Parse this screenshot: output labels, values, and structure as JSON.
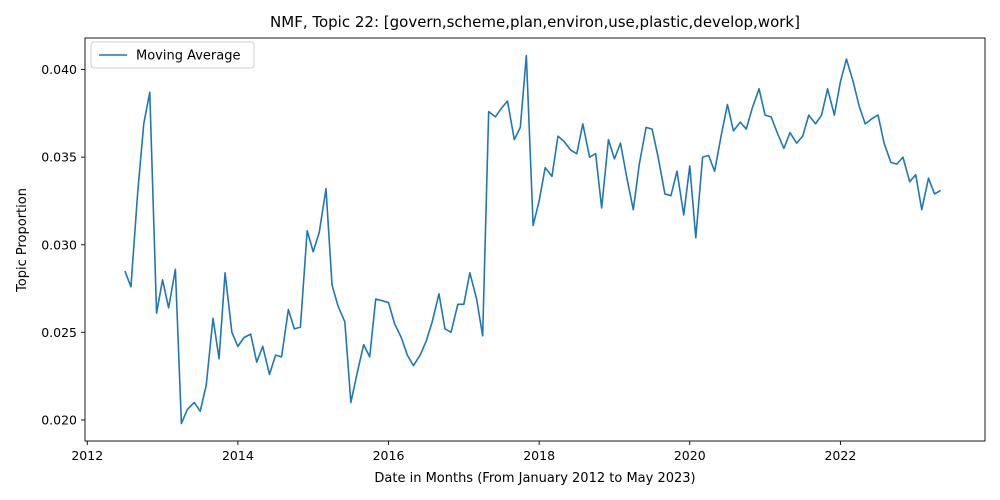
{
  "chart_data": {
    "type": "line",
    "title": "NMF, Topic 22: [govern,scheme,plan,environ,use,plastic,develop,work]",
    "xlabel": "Date in Months (From January 2012 to May 2023)",
    "ylabel": "Topic Proportion",
    "xlim": [
      2011.97,
      2023.92
    ],
    "ylim": [
      0.0188,
      0.0418
    ],
    "xticks": [
      2012,
      2014,
      2016,
      2018,
      2020,
      2022
    ],
    "yticks": [
      0.02,
      0.025,
      0.03,
      0.035,
      0.04
    ],
    "ytick_labels": [
      "0.020",
      "0.025",
      "0.030",
      "0.035",
      "0.040"
    ],
    "legend_position": "upper-left",
    "grid": false,
    "line_color": "#1f77b4",
    "series": [
      {
        "name": "Moving Average",
        "x": [
          2012.5,
          2012.58,
          2012.67,
          2012.75,
          2012.83,
          2012.92,
          2013.0,
          2013.08,
          2013.17,
          2013.25,
          2013.33,
          2013.42,
          2013.5,
          2013.58,
          2013.67,
          2013.75,
          2013.83,
          2013.92,
          2014.0,
          2014.08,
          2014.17,
          2014.25,
          2014.33,
          2014.42,
          2014.5,
          2014.58,
          2014.67,
          2014.75,
          2014.83,
          2014.92,
          2015.0,
          2015.08,
          2015.17,
          2015.25,
          2015.33,
          2015.42,
          2015.5,
          2015.58,
          2015.67,
          2015.75,
          2015.83,
          2015.92,
          2016.0,
          2016.08,
          2016.17,
          2016.25,
          2016.33,
          2016.42,
          2016.5,
          2016.58,
          2016.67,
          2016.75,
          2016.83,
          2016.92,
          2017.0,
          2017.08,
          2017.17,
          2017.25,
          2017.33,
          2017.42,
          2017.5,
          2017.58,
          2017.67,
          2017.75,
          2017.83,
          2017.92,
          2018.0,
          2018.08,
          2018.17,
          2018.25,
          2018.33,
          2018.42,
          2018.5,
          2018.58,
          2018.67,
          2018.75,
          2018.83,
          2018.92,
          2019.0,
          2019.08,
          2019.17,
          2019.25,
          2019.33,
          2019.42,
          2019.5,
          2019.58,
          2019.67,
          2019.75,
          2019.83,
          2019.92,
          2020.0,
          2020.08,
          2020.17,
          2020.25,
          2020.33,
          2020.42,
          2020.5,
          2020.58,
          2020.67,
          2020.75,
          2020.83,
          2020.92,
          2021.0,
          2021.08,
          2021.17,
          2021.25,
          2021.33,
          2021.42,
          2021.5,
          2021.58,
          2021.67,
          2021.75,
          2021.83,
          2021.92,
          2022.0,
          2022.08,
          2022.17,
          2022.25,
          2022.33,
          2022.42,
          2022.5,
          2022.58,
          2022.67,
          2022.75,
          2022.83,
          2022.92,
          2023.0,
          2023.08,
          2023.17,
          2023.25,
          2023.33
        ],
        "y": [
          0.0285,
          0.0276,
          0.033,
          0.0369,
          0.0387,
          0.0261,
          0.028,
          0.0264,
          0.0286,
          0.0198,
          0.0206,
          0.021,
          0.0205,
          0.022,
          0.0258,
          0.0235,
          0.0284,
          0.025,
          0.0242,
          0.0247,
          0.0249,
          0.0233,
          0.0242,
          0.0226,
          0.0237,
          0.0236,
          0.0263,
          0.0252,
          0.0253,
          0.0308,
          0.0296,
          0.0307,
          0.0332,
          0.0277,
          0.0265,
          0.0256,
          0.021,
          0.0226,
          0.0243,
          0.0236,
          0.0269,
          0.0268,
          0.0267,
          0.0255,
          0.0247,
          0.0237,
          0.0231,
          0.0237,
          0.0245,
          0.0256,
          0.0272,
          0.0252,
          0.025,
          0.0266,
          0.0266,
          0.0284,
          0.0269,
          0.0248,
          0.0376,
          0.0373,
          0.0378,
          0.0382,
          0.036,
          0.0367,
          0.0408,
          0.0311,
          0.0325,
          0.0344,
          0.0339,
          0.0362,
          0.0359,
          0.0354,
          0.0352,
          0.0369,
          0.035,
          0.0352,
          0.0321,
          0.036,
          0.0349,
          0.0358,
          0.0337,
          0.032,
          0.0346,
          0.0367,
          0.0366,
          0.035,
          0.0329,
          0.0328,
          0.0342,
          0.0317,
          0.0345,
          0.0304,
          0.035,
          0.0351,
          0.0342,
          0.0363,
          0.038,
          0.0365,
          0.037,
          0.0366,
          0.0378,
          0.0389,
          0.0374,
          0.0373,
          0.0363,
          0.0355,
          0.0364,
          0.0358,
          0.0362,
          0.0374,
          0.0369,
          0.0374,
          0.0389,
          0.0374,
          0.0393,
          0.0406,
          0.0393,
          0.0379,
          0.0369,
          0.0372,
          0.0374,
          0.0358,
          0.0347,
          0.0346,
          0.035,
          0.0336,
          0.034,
          0.032,
          0.0338,
          0.0329,
          0.0331
        ]
      }
    ]
  }
}
